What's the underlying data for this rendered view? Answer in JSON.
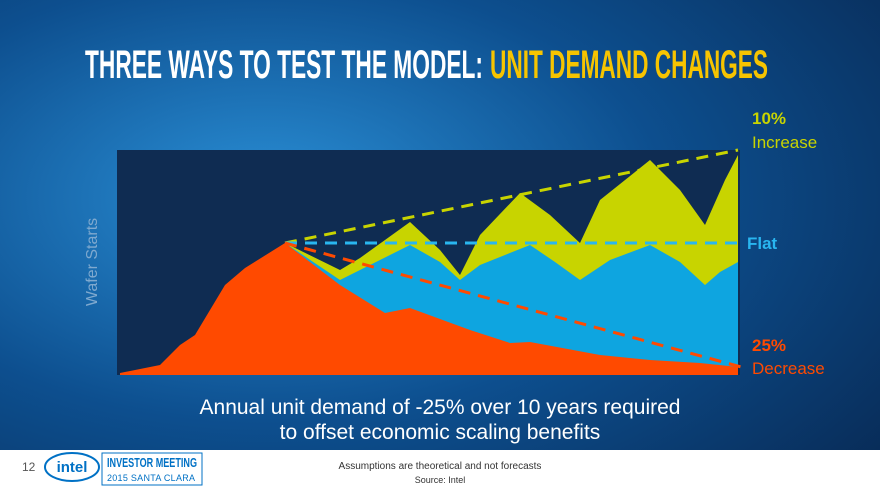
{
  "header": {
    "title_lead": "THREE WAYS TO TEST THE MODEL:",
    "title_accent": "UNIT DEMAND CHANGES"
  },
  "chart": {
    "y_label": "Wafer Starts",
    "scenarios": [
      {
        "value": "10%",
        "label": "Increase"
      },
      {
        "label": "Flat"
      },
      {
        "value": "25%",
        "label": "Decrease"
      }
    ]
  },
  "caption": {
    "line1": "Annual unit demand of -25% over 10 years required",
    "line2": "to offset economic scaling benefits"
  },
  "footer": {
    "page": "12",
    "logo": "intel",
    "event": "INVESTOR MEETING",
    "event_sub": "2015 SANTA CLARA",
    "note": "Assumptions are theoretical and not forecasts",
    "source": "Source: Intel"
  }
}
